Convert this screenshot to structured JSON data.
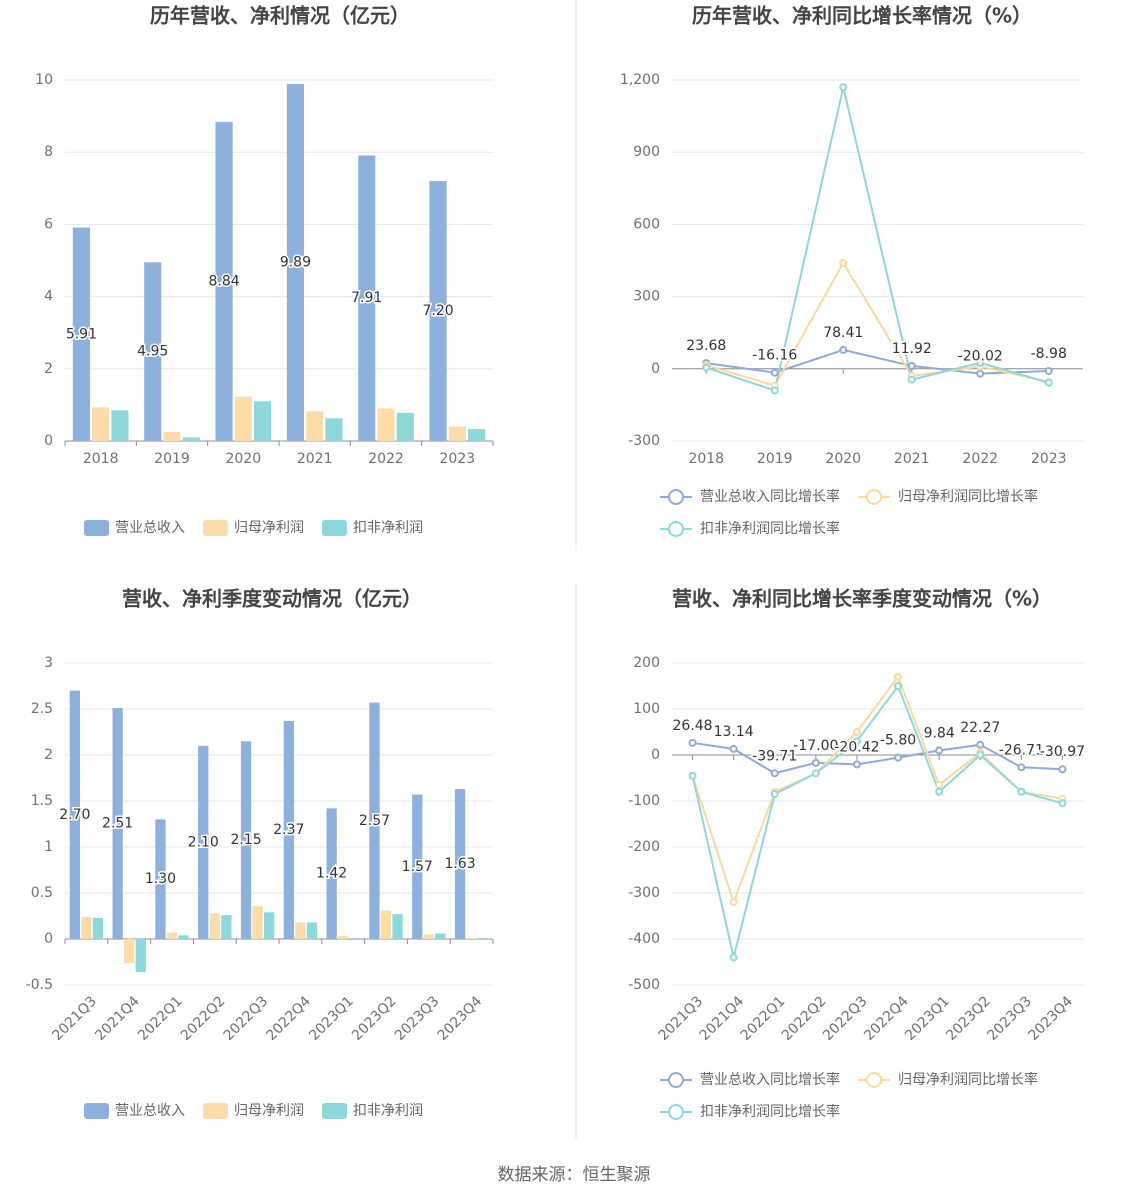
{
  "chart_data": [
    {
      "type": "bar",
      "title": "历年营收、净利情况（亿元）",
      "categories": [
        "2018",
        "2019",
        "2020",
        "2021",
        "2022",
        "2023"
      ],
      "series": [
        {
          "name": "营业总收入",
          "color": "#8eb0dc",
          "values": [
            5.91,
            4.95,
            8.84,
            9.89,
            7.91,
            7.2
          ],
          "value_labels": [
            "5.91",
            "4.95",
            "8.84",
            "9.89",
            "7.91",
            "7.20"
          ],
          "show_labels": true
        },
        {
          "name": "归母净利润",
          "color": "#fddcaa",
          "values": [
            0.93,
            0.25,
            1.23,
            0.82,
            0.9,
            0.4
          ],
          "show_labels": false
        },
        {
          "name": "扣非净利润",
          "color": "#8ed8dc",
          "values": [
            0.85,
            0.1,
            1.1,
            0.63,
            0.78,
            0.33
          ],
          "show_labels": false
        }
      ],
      "ylim": [
        0,
        10
      ],
      "yticks": [
        0,
        2,
        4,
        6,
        8,
        10
      ],
      "grid": true,
      "legend": "bottom"
    },
    {
      "type": "line",
      "title": "历年营收、净利同比增长率情况（%）",
      "categories": [
        "2018",
        "2019",
        "2020",
        "2021",
        "2022",
        "2023"
      ],
      "series": [
        {
          "name": "营业总收入同比增长率",
          "color": "#8fa9db",
          "values": [
            23.68,
            -16.16,
            78.41,
            11.92,
            -20.02,
            -8.98
          ],
          "show_labels": true
        },
        {
          "name": "归母净利润同比增长率",
          "color": "#fcd89b",
          "values": [
            15,
            -70,
            440,
            -30,
            10,
            -55
          ],
          "show_labels": false
        },
        {
          "name": "扣非净利润同比增长率",
          "color": "#8dd8d8",
          "values": [
            5,
            -90,
            1170,
            -45,
            25,
            -58
          ],
          "show_labels": false
        }
      ],
      "ylim": [
        -300,
        1200
      ],
      "yticks": [
        -300,
        0,
        300,
        600,
        900,
        {
          "value": 1200,
          "label": "1,200"
        }
      ],
      "grid": true,
      "legend": "bottom"
    },
    {
      "type": "bar",
      "title": "营收、净利季度变动情况（亿元）",
      "categories": [
        "2021Q3",
        "2021Q4",
        "2022Q1",
        "2022Q2",
        "2022Q3",
        "2022Q4",
        "2023Q1",
        "2023Q2",
        "2023Q3",
        "2023Q4"
      ],
      "series": [
        {
          "name": "营业总收入",
          "color": "#8eb0dc",
          "values": [
            2.7,
            2.51,
            1.3,
            2.1,
            2.15,
            2.37,
            1.42,
            2.57,
            1.57,
            1.63
          ],
          "value_labels": [
            "2.70",
            "2.51",
            "1.30",
            "2.10",
            "2.15",
            "2.37",
            "1.42",
            "2.57",
            "1.57",
            "1.63"
          ],
          "show_labels": true
        },
        {
          "name": "归母净利润",
          "color": "#fddcaa",
          "values": [
            0.24,
            -0.26,
            0.07,
            0.28,
            0.36,
            0.18,
            0.03,
            0.31,
            0.05,
            0.01
          ],
          "show_labels": false
        },
        {
          "name": "扣非净利润",
          "color": "#8ed8dc",
          "values": [
            0.23,
            -0.36,
            0.04,
            0.26,
            0.29,
            0.18,
            0.01,
            0.27,
            0.06,
            0.01
          ],
          "show_labels": false
        }
      ],
      "ylim": [
        -0.5,
        3
      ],
      "yticks": [
        -0.5,
        0,
        0.5,
        1,
        1.5,
        2,
        2.5,
        3
      ],
      "grid": true,
      "legend": "bottom"
    },
    {
      "type": "line",
      "title": "营收、净利同比增长率季度变动情况（%）",
      "categories": [
        "2021Q3",
        "2021Q4",
        "2022Q1",
        "2022Q2",
        "2022Q3",
        "2022Q4",
        "2023Q1",
        "2023Q2",
        "2023Q3",
        "2023Q4"
      ],
      "series": [
        {
          "name": "营业总收入同比增长率",
          "color": "#8fa9db",
          "values": [
            26.48,
            13.14,
            -39.71,
            -17.0,
            -20.42,
            -5.8,
            9.84,
            22.27,
            -26.71,
            -30.97
          ],
          "value_labels": [
            "26.48",
            "13.14",
            "-39.71",
            "-17.00",
            "-20.42",
            "-5.80",
            "9.84",
            "22.27",
            "-26.71",
            "-30.97"
          ],
          "show_labels": true
        },
        {
          "name": "归母净利润同比增长率",
          "color": "#fcd89b",
          "values": [
            -45,
            -320,
            -80,
            -40,
            50,
            170,
            -65,
            5,
            -80,
            -95
          ],
          "show_labels": false
        },
        {
          "name": "扣非净利润同比增长率",
          "color": "#8dd8d8",
          "values": [
            -45,
            -440,
            -85,
            -40,
            30,
            150,
            -80,
            0,
            -80,
            -105
          ],
          "show_labels": false
        }
      ],
      "ylim": [
        -500,
        200
      ],
      "yticks": [
        -500,
        -400,
        -300,
        -200,
        -100,
        0,
        100,
        200
      ],
      "grid": true,
      "legend": "bottom"
    }
  ],
  "source": "数据来源：恒生聚源"
}
